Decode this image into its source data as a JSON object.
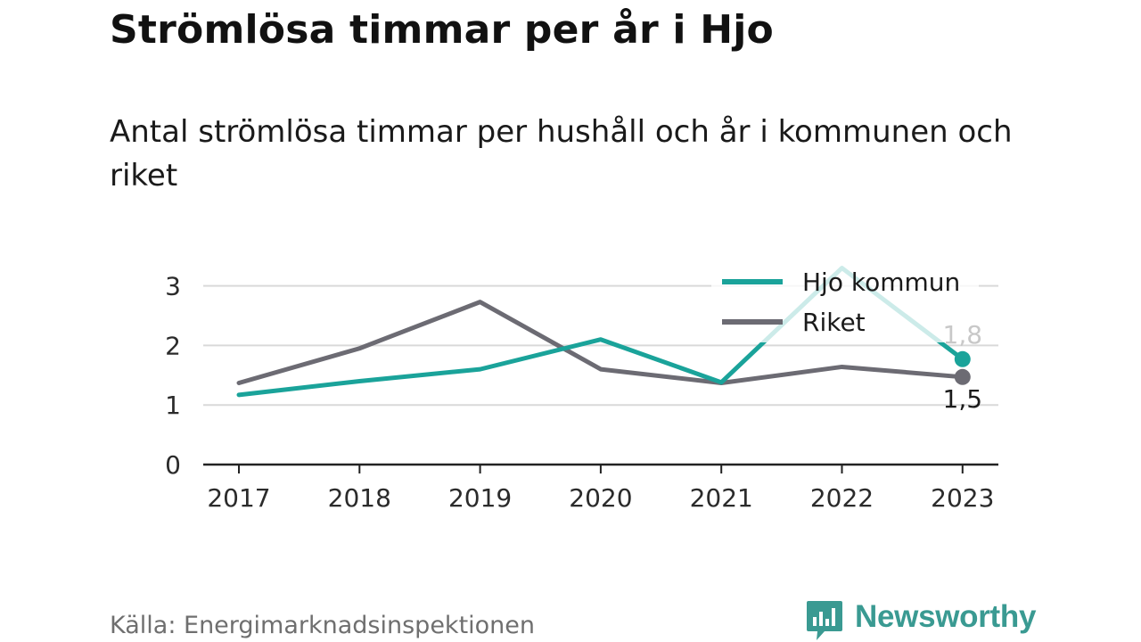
{
  "title": "Strömlösa timmar per år i Hjo",
  "subtitle": "Antal strömlösa timmar per hushåll och år i kommunen och riket",
  "source": "Källa: Energimarknadsinspektionen",
  "brand": {
    "name": "Newsworthy",
    "icon": "newsworthy-logo-icon",
    "color": "#3a9a92"
  },
  "chart_data": {
    "type": "line",
    "x": [
      "2017",
      "2018",
      "2019",
      "2020",
      "2021",
      "2022",
      "2023"
    ],
    "series": [
      {
        "name": "Hjo kommun",
        "color": "#1aa39a",
        "values": [
          1.17,
          1.4,
          1.6,
          2.1,
          1.38,
          3.3,
          1.77
        ]
      },
      {
        "name": "Riket",
        "color": "#6c6b73",
        "values": [
          1.37,
          1.95,
          2.73,
          1.6,
          1.37,
          1.64,
          1.47
        ]
      }
    ],
    "yticks": [
      "0",
      "1",
      "2",
      "3"
    ],
    "ylim": [
      0,
      3.4
    ],
    "grid": true,
    "legend": "top-right",
    "end_labels": {
      "Hjo kommun": "1,8",
      "Riket": "1,5"
    }
  }
}
